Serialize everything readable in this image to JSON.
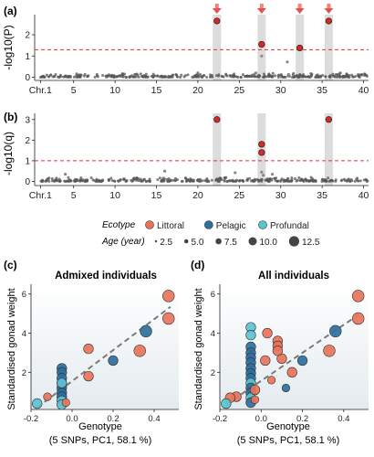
{
  "chart_data": [
    {
      "panel_label": "(a)",
      "type": "scatter",
      "title": "",
      "xlabel": "",
      "ylabel": "-log10(P)",
      "xticks": [
        {
          "label": "Chr.1",
          "value": 1
        },
        {
          "label": "5",
          "value": 5
        },
        {
          "label": "10",
          "value": 10
        },
        {
          "label": "15",
          "value": 15
        },
        {
          "label": "20",
          "value": 20
        },
        {
          "label": "25",
          "value": 25
        },
        {
          "label": "30",
          "value": 30
        },
        {
          "label": "35",
          "value": 35
        },
        {
          "label": "40",
          "value": 40
        }
      ],
      "xlim": [
        0.3,
        40.6
      ],
      "ylim": [
        -0.15,
        2.95
      ],
      "yticks": [
        0,
        1,
        2
      ],
      "threshold": 1.3,
      "highlight_chromosomes": [
        22.3,
        27.7,
        32.3,
        35.8
      ],
      "arrows_at": [
        22.3,
        27.7,
        32.3,
        35.8
      ],
      "significant_points": [
        {
          "x": 22.3,
          "y": 2.65
        },
        {
          "x": 27.7,
          "y": 1.55
        },
        {
          "x": 32.3,
          "y": 1.38
        },
        {
          "x": 35.8,
          "y": 2.65
        }
      ],
      "background_points": [
        {
          "x": 27.7,
          "y": 1.0
        },
        {
          "x": 30.8,
          "y": 0.72
        },
        {
          "x": 27.0,
          "y": 0.2
        },
        {
          "x": 31.0,
          "y": 0.1
        }
      ]
    },
    {
      "panel_label": "(b)",
      "type": "scatter",
      "title": "",
      "xlabel": "",
      "ylabel": "-log10(q)",
      "xticks": [
        {
          "label": "Chr.1",
          "value": 1
        },
        {
          "label": "5",
          "value": 5
        },
        {
          "label": "10",
          "value": 10
        },
        {
          "label": "15",
          "value": 15
        },
        {
          "label": "20",
          "value": 20
        },
        {
          "label": "25",
          "value": 25
        },
        {
          "label": "30",
          "value": 30
        },
        {
          "label": "35",
          "value": 35
        },
        {
          "label": "40",
          "value": 40
        }
      ],
      "xlim": [
        0.3,
        40.6
      ],
      "ylim": [
        -0.2,
        3.3
      ],
      "yticks": [
        0,
        1,
        2,
        3
      ],
      "threshold": 1.0,
      "highlight_chromosomes": [
        22.3,
        27.7,
        35.8
      ],
      "significant_points": [
        {
          "x": 22.3,
          "y": 3.0
        },
        {
          "x": 27.7,
          "y": 1.8
        },
        {
          "x": 27.7,
          "y": 1.4
        },
        {
          "x": 35.8,
          "y": 3.0
        }
      ],
      "background_points": [
        {
          "x": 16.0,
          "y": 0.5
        },
        {
          "x": 27.7,
          "y": 0.45
        },
        {
          "x": 27.9,
          "y": 0.3
        },
        {
          "x": 24.5,
          "y": 0.42
        },
        {
          "x": 4.0,
          "y": 0.35
        },
        {
          "x": 29.0,
          "y": 0.35
        }
      ]
    },
    {
      "panel_label": "(c)",
      "type": "scatter",
      "title": "Admixed individuals",
      "xlabel": "Genotype\n(5 SNPs, PC1, 58.1 %)",
      "ylabel": "Standardised gonad weight",
      "xlim": [
        -0.2,
        0.52
      ],
      "ylim": [
        0.1,
        6.5
      ],
      "xticks": [
        -0.2,
        0.0,
        0.2,
        0.4
      ],
      "xtick_labels": [
        "-0.2",
        "0.0",
        "0.2",
        "0.4"
      ],
      "yticks": [
        2,
        4,
        6
      ],
      "trend_line": {
        "x": [
          -0.17,
          0.48
        ],
        "y": [
          0.2,
          5.35
        ]
      },
      "points": [
        {
          "x": 0.47,
          "y": 5.9,
          "ecotype": "Littoral",
          "age": 10
        },
        {
          "x": 0.47,
          "y": 4.75,
          "ecotype": "Littoral",
          "age": 10
        },
        {
          "x": 0.36,
          "y": 4.1,
          "ecotype": "Pelagic",
          "age": 10
        },
        {
          "x": 0.33,
          "y": 3.1,
          "ecotype": "Littoral",
          "age": 10
        },
        {
          "x": 0.2,
          "y": 2.6,
          "ecotype": "Pelagic",
          "age": 7.5
        },
        {
          "x": 0.08,
          "y": 3.2,
          "ecotype": "Littoral",
          "age": 7.5
        },
        {
          "x": 0.08,
          "y": 1.8,
          "ecotype": "Littoral",
          "age": 7.5
        },
        {
          "x": -0.05,
          "y": 2.2,
          "ecotype": "Pelagic",
          "age": 7.5
        },
        {
          "x": -0.05,
          "y": 2.0,
          "ecotype": "Pelagic",
          "age": 7.5
        },
        {
          "x": -0.05,
          "y": 1.7,
          "ecotype": "Pelagic",
          "age": 7.5
        },
        {
          "x": -0.05,
          "y": 1.45,
          "ecotype": "Pelagic",
          "age": 7.5
        },
        {
          "x": -0.05,
          "y": 1.2,
          "ecotype": "Pelagic",
          "age": 7.5
        },
        {
          "x": -0.05,
          "y": 0.95,
          "ecotype": "Pelagic",
          "age": 7.5
        },
        {
          "x": -0.05,
          "y": 0.75,
          "ecotype": "Pelagic",
          "age": 7.5
        },
        {
          "x": -0.05,
          "y": 0.55,
          "ecotype": "Profundal",
          "age": 7.5
        },
        {
          "x": -0.05,
          "y": 0.35,
          "ecotype": "Profundal",
          "age": 7.5
        },
        {
          "x": -0.05,
          "y": 1.45,
          "ecotype": "Profundal",
          "age": 7.5
        },
        {
          "x": -0.03,
          "y": 0.45,
          "ecotype": "Littoral",
          "age": 5
        },
        {
          "x": -0.12,
          "y": 0.75,
          "ecotype": "Littoral",
          "age": 5
        },
        {
          "x": -0.17,
          "y": 0.4,
          "ecotype": "Profundal",
          "age": 7.5
        }
      ]
    },
    {
      "panel_label": "(d)",
      "type": "scatter",
      "title": "All individuals",
      "xlabel": "Genotype\n(5 SNPs, PC1, 58.1 %)",
      "ylabel": "Standardised gonad weight",
      "xlim": [
        -0.2,
        0.52
      ],
      "ylim": [
        0.1,
        6.5
      ],
      "xticks": [
        -0.2,
        0.0,
        0.2,
        0.4
      ],
      "xtick_labels": [
        "-0.2",
        "0.0",
        "0.2",
        "0.4"
      ],
      "yticks": [
        2,
        4,
        6
      ],
      "trend_line": {
        "x": [
          -0.17,
          0.48
        ],
        "y": [
          0.35,
          5.0
        ]
      },
      "points": [
        {
          "x": 0.47,
          "y": 5.9,
          "ecotype": "Littoral",
          "age": 10
        },
        {
          "x": 0.47,
          "y": 4.75,
          "ecotype": "Littoral",
          "age": 10
        },
        {
          "x": 0.36,
          "y": 4.1,
          "ecotype": "Pelagic",
          "age": 10
        },
        {
          "x": 0.33,
          "y": 3.1,
          "ecotype": "Littoral",
          "age": 10
        },
        {
          "x": 0.2,
          "y": 2.6,
          "ecotype": "Pelagic",
          "age": 7.5
        },
        {
          "x": 0.15,
          "y": 2.0,
          "ecotype": "Littoral",
          "age": 7.5
        },
        {
          "x": 0.1,
          "y": 2.7,
          "ecotype": "Littoral",
          "age": 7.5
        },
        {
          "x": 0.08,
          "y": 3.6,
          "ecotype": "Littoral",
          "age": 7.5
        },
        {
          "x": 0.08,
          "y": 3.35,
          "ecotype": "Littoral",
          "age": 7.5
        },
        {
          "x": 0.08,
          "y": 3.1,
          "ecotype": "Littoral",
          "age": 7.5
        },
        {
          "x": 0.03,
          "y": 4.0,
          "ecotype": "Littoral",
          "age": 7.5
        },
        {
          "x": 0.02,
          "y": 2.6,
          "ecotype": "Littoral",
          "age": 7.5
        },
        {
          "x": 0.05,
          "y": 1.6,
          "ecotype": "Littoral",
          "age": 5
        },
        {
          "x": 0.12,
          "y": 1.2,
          "ecotype": "Pelagic",
          "age": 5
        },
        {
          "x": -0.05,
          "y": 4.3,
          "ecotype": "Profundal",
          "age": 7.5
        },
        {
          "x": -0.05,
          "y": 3.9,
          "ecotype": "Profundal",
          "age": 7.5
        },
        {
          "x": -0.05,
          "y": 3.3,
          "ecotype": "Pelagic",
          "age": 7.5
        },
        {
          "x": -0.05,
          "y": 3.0,
          "ecotype": "Pelagic",
          "age": 7.5
        },
        {
          "x": -0.05,
          "y": 2.75,
          "ecotype": "Pelagic",
          "age": 7.5
        },
        {
          "x": -0.05,
          "y": 2.5,
          "ecotype": "Pelagic",
          "age": 7.5
        },
        {
          "x": -0.05,
          "y": 2.2,
          "ecotype": "Pelagic",
          "age": 7.5
        },
        {
          "x": -0.05,
          "y": 1.95,
          "ecotype": "Pelagic",
          "age": 7.5
        },
        {
          "x": -0.05,
          "y": 1.7,
          "ecotype": "Pelagic",
          "age": 7.5
        },
        {
          "x": -0.05,
          "y": 1.45,
          "ecotype": "Profundal",
          "age": 7.5
        },
        {
          "x": -0.05,
          "y": 1.2,
          "ecotype": "Pelagic",
          "age": 7.5
        },
        {
          "x": -0.05,
          "y": 0.95,
          "ecotype": "Pelagic",
          "age": 7.5
        },
        {
          "x": -0.05,
          "y": 0.7,
          "ecotype": "Profundal",
          "age": 7.5
        },
        {
          "x": -0.05,
          "y": 0.45,
          "ecotype": "Pelagic",
          "age": 7.5
        },
        {
          "x": -0.03,
          "y": 1.1,
          "ecotype": "Littoral",
          "age": 7.5
        },
        {
          "x": -0.03,
          "y": 0.6,
          "ecotype": "Littoral",
          "age": 5
        },
        {
          "x": -0.12,
          "y": 0.75,
          "ecotype": "Littoral",
          "age": 7.5
        },
        {
          "x": -0.15,
          "y": 0.7,
          "ecotype": "Littoral",
          "age": 7.5
        },
        {
          "x": -0.17,
          "y": 0.4,
          "ecotype": "Profundal",
          "age": 7.5
        }
      ]
    }
  ],
  "legend": {
    "ecotype_title": "Ecotype",
    "ecotypes": [
      {
        "name": "Littoral",
        "color": "#e8735a"
      },
      {
        "name": "Pelagic",
        "color": "#2e6f9e"
      },
      {
        "name": "Profundal",
        "color": "#5bc3d1"
      }
    ],
    "age_title": "Age (year)",
    "ages": [
      "2.5",
      "5.0",
      "7.5",
      "10.0",
      "12.5"
    ]
  },
  "colors": {
    "significant": "#d62828",
    "threshold": "#e03030",
    "arrow": "#e8504c",
    "highlight_band": "#dcdcdc",
    "manhattan_points": "#555555",
    "trend_line": "#7a7a7a"
  }
}
